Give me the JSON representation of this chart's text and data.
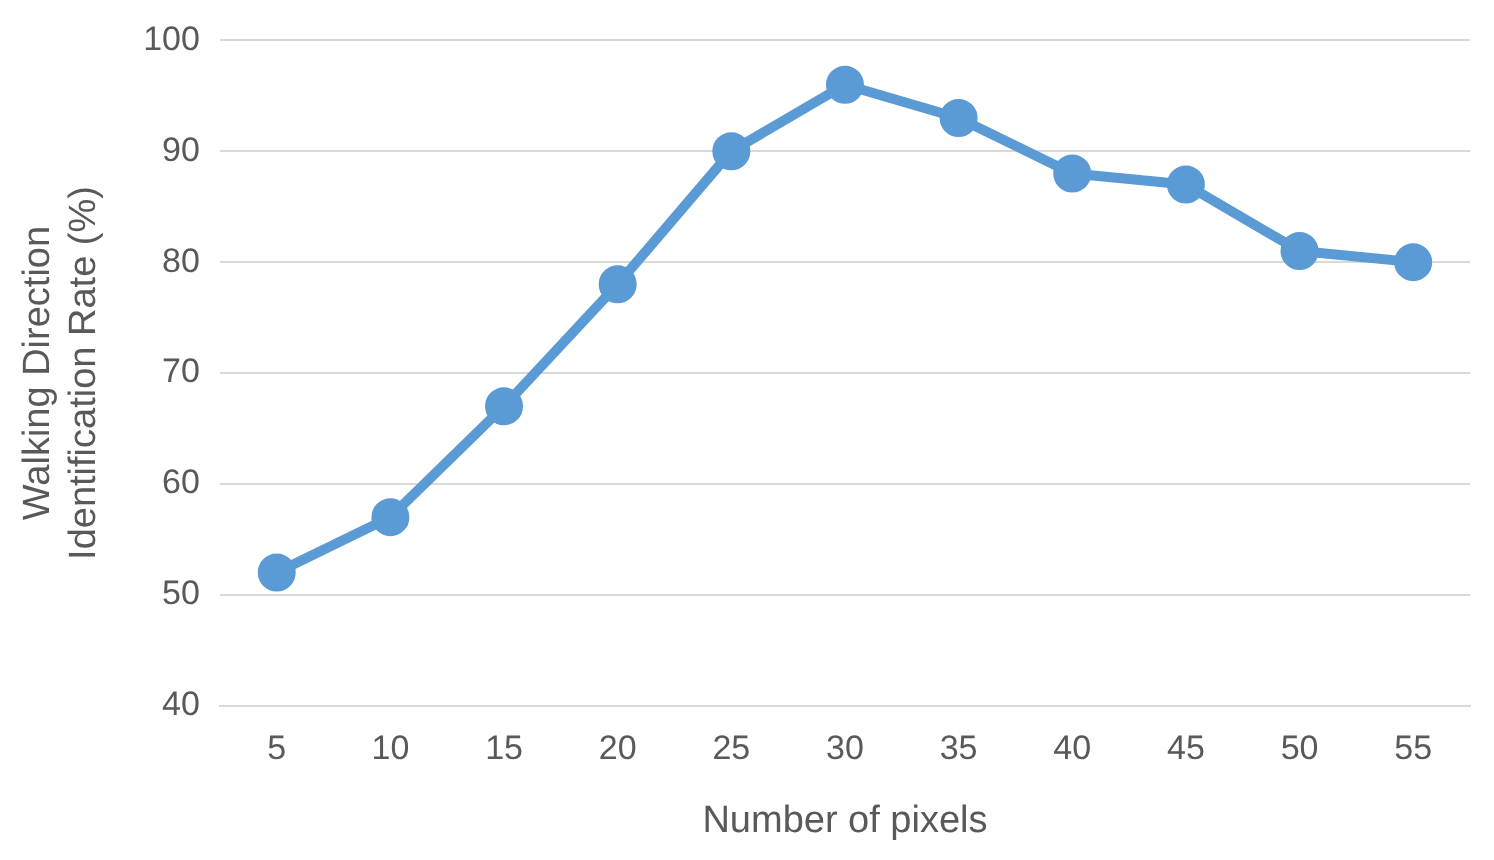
{
  "chart_data": {
    "type": "line",
    "xlabel": "Number of pixels",
    "ylabel": "Walking Direction Identification Rate (%)",
    "categories": [
      "5",
      "10",
      "15",
      "20",
      "25",
      "30",
      "35",
      "40",
      "45",
      "50",
      "55"
    ],
    "series": [
      {
        "color": "#5b9bd5",
        "values": [
          52,
          57,
          67,
          78,
          90,
          96,
          93,
          88,
          87,
          81,
          80
        ]
      }
    ],
    "ylim": [
      40,
      100
    ],
    "yticks": [
      40,
      50,
      60,
      70,
      80,
      90,
      100
    ],
    "grid": "y",
    "marker": "circle",
    "line_style": "solid"
  }
}
